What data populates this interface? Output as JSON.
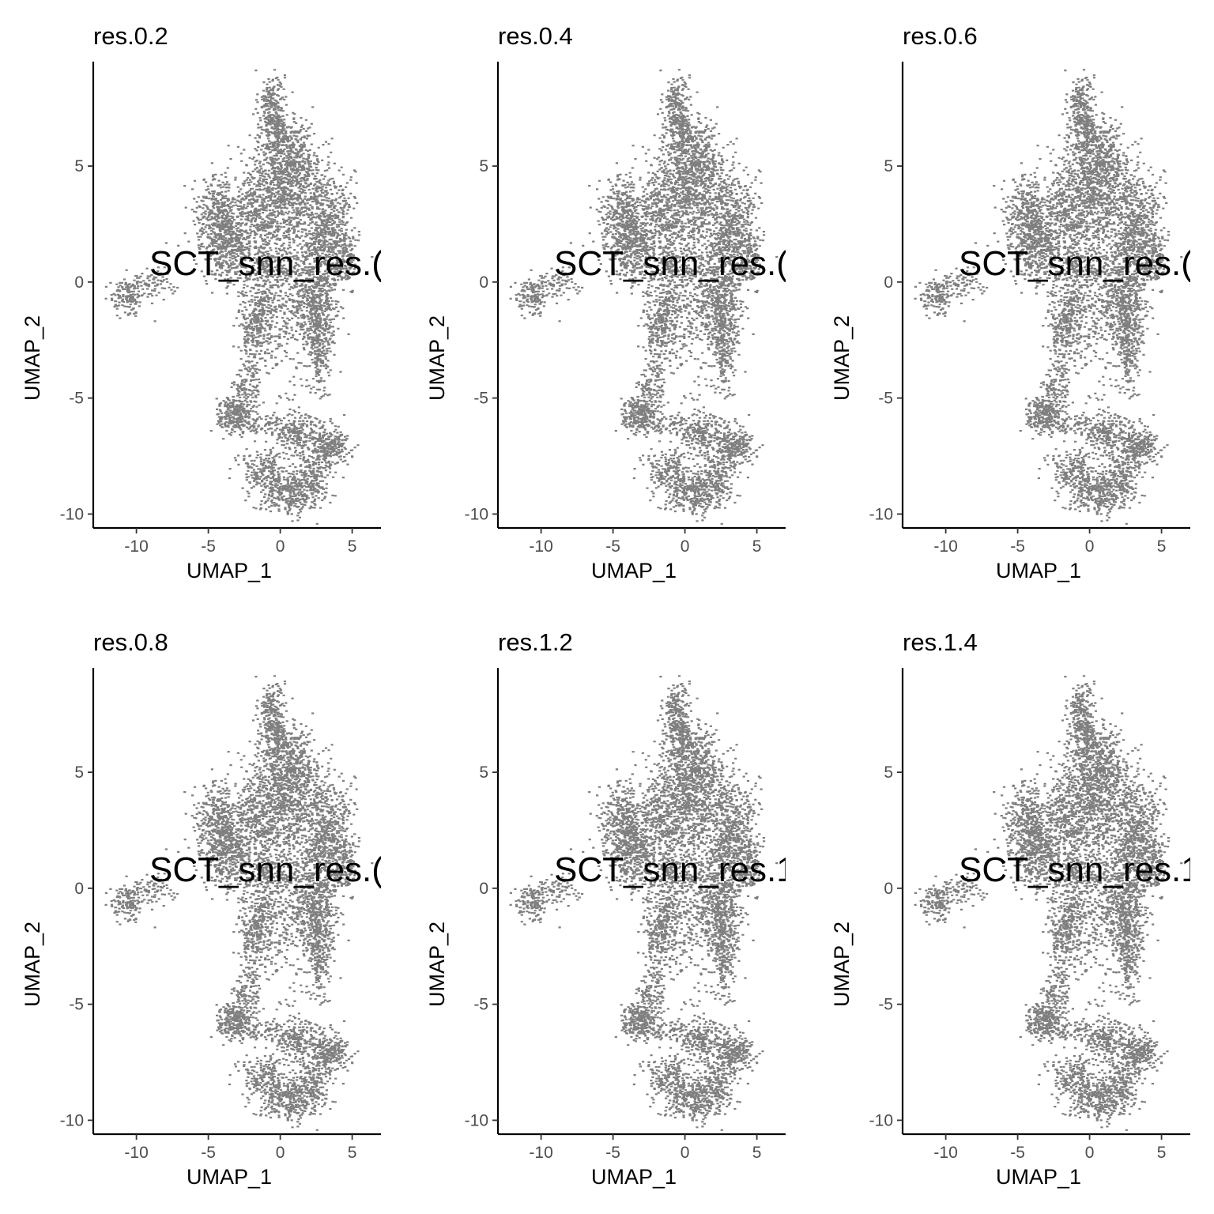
{
  "chart_data": [
    {
      "type": "scatter",
      "title": "res.0.2",
      "xlabel": "UMAP_1",
      "ylabel": "UMAP_2",
      "xlim": [
        -13,
        7
      ],
      "ylim": [
        -10.6,
        9.5
      ],
      "xticks": [
        -10,
        -5,
        0,
        5
      ],
      "yticks": [
        5,
        0,
        -5,
        -10
      ],
      "point_color": "#7f7f7f",
      "annotation": "SCT_snn_res.("
    },
    {
      "type": "scatter",
      "title": "res.0.4",
      "xlabel": "UMAP_1",
      "ylabel": "UMAP_2",
      "xlim": [
        -13,
        7
      ],
      "ylim": [
        -10.6,
        9.5
      ],
      "xticks": [
        -10,
        -5,
        0,
        5
      ],
      "yticks": [
        5,
        0,
        -5,
        -10
      ],
      "point_color": "#7f7f7f",
      "annotation": "SCT_snn_res.("
    },
    {
      "type": "scatter",
      "title": "res.0.6",
      "xlabel": "UMAP_1",
      "ylabel": "UMAP_2",
      "xlim": [
        -13,
        7
      ],
      "ylim": [
        -10.6,
        9.5
      ],
      "xticks": [
        -10,
        -5,
        0,
        5
      ],
      "yticks": [
        5,
        0,
        -5,
        -10
      ],
      "point_color": "#7f7f7f",
      "annotation": "SCT_snn_res.("
    },
    {
      "type": "scatter",
      "title": "res.0.8",
      "xlabel": "UMAP_1",
      "ylabel": "UMAP_2",
      "xlim": [
        -13,
        7
      ],
      "ylim": [
        -10.6,
        9.5
      ],
      "xticks": [
        -10,
        -5,
        0,
        5
      ],
      "yticks": [
        5,
        0,
        -5,
        -10
      ],
      "point_color": "#7f7f7f",
      "annotation": "SCT_snn_res.("
    },
    {
      "type": "scatter",
      "title": "res.1.2",
      "xlabel": "UMAP_1",
      "ylabel": "UMAP_2",
      "xlim": [
        -13,
        7
      ],
      "ylim": [
        -10.6,
        9.5
      ],
      "xticks": [
        -10,
        -5,
        0,
        5
      ],
      "yticks": [
        5,
        0,
        -5,
        -10
      ],
      "point_color": "#7f7f7f",
      "annotation": "SCT_snn_res.1"
    },
    {
      "type": "scatter",
      "title": "res.1.4",
      "xlabel": "UMAP_1",
      "ylabel": "UMAP_2",
      "xlim": [
        -13,
        7
      ],
      "ylim": [
        -10.6,
        9.5
      ],
      "xticks": [
        -10,
        -5,
        0,
        5
      ],
      "yticks": [
        5,
        0,
        -5,
        -10
      ],
      "point_color": "#7f7f7f",
      "annotation": "SCT_snn_res.1"
    }
  ]
}
